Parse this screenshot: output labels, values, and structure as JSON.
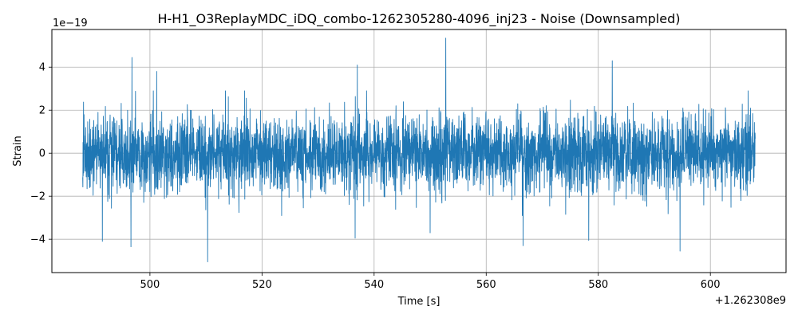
{
  "chart_data": {
    "type": "line",
    "title": "H-H1_O3ReplayMDC_iDQ_combo-1262305280-4096_inj23 - Noise (Downsampled)",
    "xlabel": "Time [s]",
    "ylabel": "Strain",
    "x_offset_label": "+1.262308e9",
    "y_scale_label": "1e−19",
    "x_offset": 1262308000,
    "y_scale": 1e-19,
    "xlim": [
      482.5,
      613.5
    ],
    "ylim": [
      -5.55,
      5.75
    ],
    "x_ticks": [
      500,
      520,
      540,
      560,
      580,
      600
    ],
    "x_tick_labels": [
      "500",
      "520",
      "540",
      "560",
      "580",
      "600"
    ],
    "y_ticks": [
      -4,
      -2,
      0,
      2,
      4
    ],
    "y_tick_labels": [
      "−4",
      "−2",
      "0",
      "2",
      "4"
    ],
    "grid": true,
    "legend": "none",
    "line_color": "#1f77b4",
    "series": [
      {
        "x_start": 488.0,
        "x_end": 608.0,
        "std": 0.9,
        "typical_band": [
          -2.5,
          2.5
        ],
        "peaks": [
          {
            "x": 552.8,
            "y": 5.35
          },
          {
            "x": 496.8,
            "y": 4.45
          },
          {
            "x": 582.5,
            "y": 4.3
          },
          {
            "x": 501.2,
            "y": 3.8
          },
          {
            "x": 537.0,
            "y": 4.1
          },
          {
            "x": 510.3,
            "y": -5.05
          },
          {
            "x": 594.6,
            "y": -4.55
          },
          {
            "x": 496.6,
            "y": -4.35
          },
          {
            "x": 566.6,
            "y": -4.3
          },
          {
            "x": 578.3,
            "y": -4.05
          },
          {
            "x": 491.5,
            "y": -4.1
          },
          {
            "x": 536.6,
            "y": -3.95
          },
          {
            "x": 550.0,
            "y": -3.7
          }
        ]
      }
    ]
  }
}
